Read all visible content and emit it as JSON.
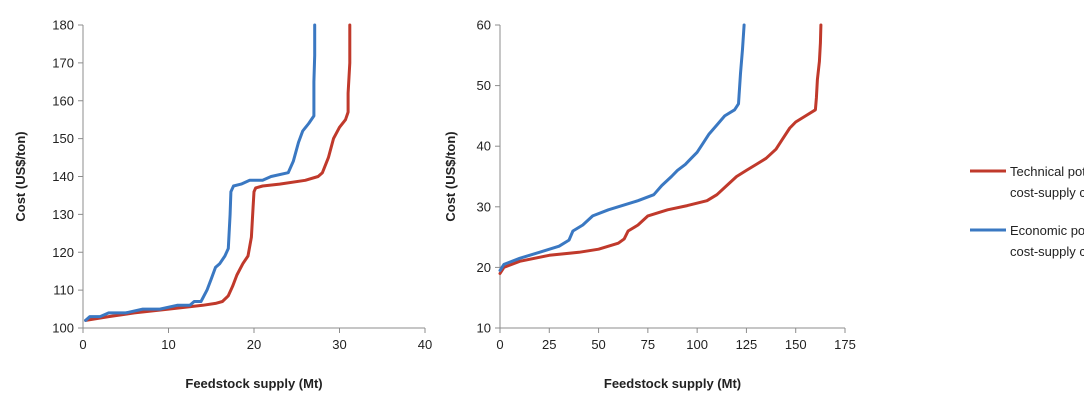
{
  "colors": {
    "technical": "#c0392b",
    "economic": "#3a78c2",
    "axis": "#8c8c8c"
  },
  "legend": {
    "technical_line1": "Technical potential",
    "technical_line2": "cost-supply curve",
    "economic_line1": "Economic potential",
    "economic_line2": "cost-supply curve"
  },
  "chart_data": [
    {
      "type": "line",
      "xlabel": "Feedstock supply (Mt)",
      "ylabel": "Cost (US$/ton)",
      "xlim": [
        0,
        40
      ],
      "ylim": [
        100,
        180
      ],
      "xticks": [
        "0",
        "10",
        "20",
        "30",
        "40"
      ],
      "yticks": [
        "100",
        "110",
        "120",
        "130",
        "140",
        "150",
        "160",
        "170",
        "180"
      ],
      "grid": false,
      "series": [
        {
          "name": "Technical potential cost-supply curve",
          "color_key": "technical",
          "points": [
            [
              0.3,
              102
            ],
            [
              3,
              103
            ],
            [
              6,
              104
            ],
            [
              10,
              105
            ],
            [
              14,
              106
            ],
            [
              15.5,
              106.5
            ],
            [
              16.3,
              107
            ],
            [
              17,
              108.5
            ],
            [
              17.5,
              111
            ],
            [
              18,
              114
            ],
            [
              18.7,
              117
            ],
            [
              19.3,
              119
            ],
            [
              19.7,
              124
            ],
            [
              19.9,
              132
            ],
            [
              20,
              136
            ],
            [
              20.2,
              137
            ],
            [
              21,
              137.5
            ],
            [
              23,
              138
            ],
            [
              26,
              139
            ],
            [
              27.5,
              140
            ],
            [
              28,
              141
            ],
            [
              28.7,
              145
            ],
            [
              29.3,
              150
            ],
            [
              30,
              153
            ],
            [
              30.7,
              155
            ],
            [
              31,
              157
            ],
            [
              31,
              162
            ],
            [
              31.2,
              170
            ],
            [
              31.2,
              180
            ]
          ]
        },
        {
          "name": "Economic potential cost-supply curve",
          "color_key": "economic",
          "points": [
            [
              0.3,
              102
            ],
            [
              0.8,
              103
            ],
            [
              2,
              103
            ],
            [
              3,
              104
            ],
            [
              5,
              104
            ],
            [
              7,
              105
            ],
            [
              9,
              105
            ],
            [
              11,
              106
            ],
            [
              12.5,
              106
            ],
            [
              13,
              107
            ],
            [
              13.8,
              107
            ],
            [
              14.5,
              110
            ],
            [
              15,
              113
            ],
            [
              15.5,
              116
            ],
            [
              16,
              117
            ],
            [
              16.6,
              119
            ],
            [
              17,
              121
            ],
            [
              17.2,
              130
            ],
            [
              17.3,
              136
            ],
            [
              17.6,
              137.5
            ],
            [
              18.5,
              138
            ],
            [
              19.5,
              139
            ],
            [
              21,
              139
            ],
            [
              22,
              140
            ],
            [
              24,
              141
            ],
            [
              24.6,
              144
            ],
            [
              25.2,
              149
            ],
            [
              25.7,
              152
            ],
            [
              26.4,
              154
            ],
            [
              27,
              156
            ],
            [
              27,
              165
            ],
            [
              27.1,
              172
            ],
            [
              27.1,
              180
            ]
          ]
        }
      ]
    },
    {
      "type": "line",
      "xlabel": "Feedstock supply (Mt)",
      "ylabel": "Cost (US$/ton)",
      "xlim": [
        0,
        175
      ],
      "ylim": [
        10,
        60
      ],
      "xticks": [
        "0",
        "25",
        "50",
        "75",
        "100",
        "125",
        "150",
        "175"
      ],
      "yticks": [
        "10",
        "20",
        "30",
        "40",
        "50",
        "60"
      ],
      "grid": false,
      "series": [
        {
          "name": "Technical potential cost-supply curve",
          "color_key": "technical",
          "points": [
            [
              0,
              19
            ],
            [
              2,
              20
            ],
            [
              10,
              21
            ],
            [
              25,
              22
            ],
            [
              40,
              22.5
            ],
            [
              50,
              23
            ],
            [
              60,
              24
            ],
            [
              63,
              24.7
            ],
            [
              65,
              26
            ],
            [
              70,
              27
            ],
            [
              75,
              28.5
            ],
            [
              85,
              29.5
            ],
            [
              95,
              30.2
            ],
            [
              105,
              31
            ],
            [
              110,
              32
            ],
            [
              115,
              33.5
            ],
            [
              120,
              35
            ],
            [
              125,
              36
            ],
            [
              130,
              37
            ],
            [
              135,
              38
            ],
            [
              140,
              39.5
            ],
            [
              143,
              41
            ],
            [
              147,
              43
            ],
            [
              150,
              44
            ],
            [
              155,
              45
            ],
            [
              160,
              46
            ],
            [
              160.5,
              48
            ],
            [
              161,
              51
            ],
            [
              162,
              54
            ],
            [
              162.5,
              57
            ],
            [
              162.8,
              60
            ]
          ]
        },
        {
          "name": "Economic potential cost-supply curve",
          "color_key": "economic",
          "points": [
            [
              0,
              19.5
            ],
            [
              2,
              20.5
            ],
            [
              10,
              21.5
            ],
            [
              20,
              22.5
            ],
            [
              30,
              23.5
            ],
            [
              35,
              24.5
            ],
            [
              37,
              26
            ],
            [
              42,
              27
            ],
            [
              47,
              28.5
            ],
            [
              55,
              29.5
            ],
            [
              62,
              30.2
            ],
            [
              70,
              31
            ],
            [
              78,
              32
            ],
            [
              82,
              33.5
            ],
            [
              87,
              35
            ],
            [
              90,
              36
            ],
            [
              94,
              37
            ],
            [
              97,
              38
            ],
            [
              100,
              39
            ],
            [
              103,
              40.5
            ],
            [
              106,
              42
            ],
            [
              110,
              43.5
            ],
            [
              114,
              45
            ],
            [
              119,
              46
            ],
            [
              121,
              47
            ],
            [
              122,
              52
            ],
            [
              123,
              56
            ],
            [
              123.8,
              60
            ]
          ]
        }
      ]
    }
  ]
}
